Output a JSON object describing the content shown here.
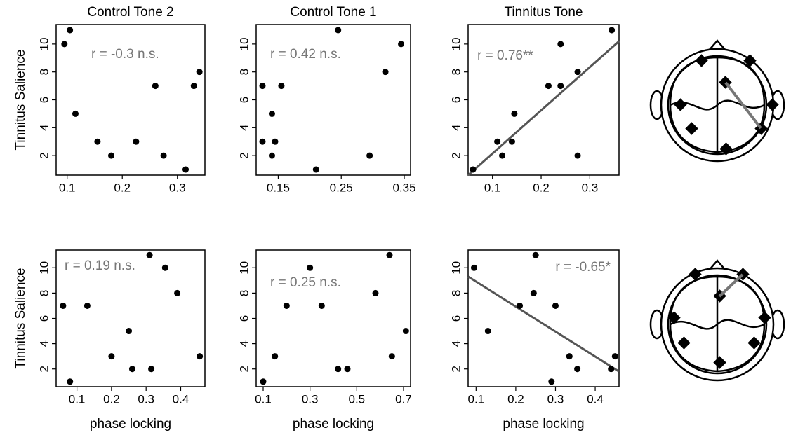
{
  "chart_data": [
    {
      "type": "scatter",
      "title": "Control Tone 2",
      "ylabel": "Tinnitus Salience",
      "annotation": "r = -0.3 n.s.",
      "x": [
        0.095,
        0.105,
        0.115,
        0.155,
        0.18,
        0.225,
        0.26,
        0.275,
        0.315,
        0.33,
        0.34
      ],
      "values": [
        10,
        11,
        5,
        3,
        2,
        3,
        7,
        2,
        1,
        7,
        8
      ],
      "xlim": [
        0.08,
        0.35
      ],
      "ylim": [
        0.6,
        11.4
      ],
      "xticks": [
        0.1,
        0.2,
        0.3
      ],
      "yticks": [
        2,
        4,
        6,
        8,
        10
      ],
      "color": "#000000"
    },
    {
      "type": "scatter",
      "title": "Control Tone 1",
      "annotation": "r = 0.42 n.s.",
      "x": [
        0.125,
        0.125,
        0.14,
        0.14,
        0.145,
        0.155,
        0.21,
        0.245,
        0.295,
        0.32,
        0.345
      ],
      "values": [
        7,
        3,
        5,
        2,
        3,
        7,
        1,
        11,
        2,
        8,
        10
      ],
      "xlim": [
        0.115,
        0.36
      ],
      "ylim": [
        0.6,
        11.4
      ],
      "xticks": [
        0.15,
        0.25,
        0.35
      ],
      "yticks": [
        2,
        4,
        6,
        8,
        10
      ],
      "color": "#000000"
    },
    {
      "type": "scatter",
      "title": "Tinnitus Tone",
      "annotation": "r = 0.76**",
      "x": [
        0.06,
        0.11,
        0.12,
        0.14,
        0.145,
        0.215,
        0.24,
        0.24,
        0.275,
        0.275,
        0.345
      ],
      "values": [
        1,
        3,
        2,
        3,
        5,
        7,
        7,
        10,
        8,
        2,
        11
      ],
      "fit_line": {
        "x": [
          0.05,
          0.36
        ],
        "y": [
          0.6,
          10.2
        ],
        "color": "#555555"
      },
      "xlim": [
        0.05,
        0.36
      ],
      "ylim": [
        0.6,
        11.4
      ],
      "xticks": [
        0.1,
        0.2,
        0.3
      ],
      "yticks": [
        2,
        4,
        6,
        8,
        10
      ],
      "color": "#000000"
    },
    {
      "type": "scatter",
      "xlabel": "phase locking",
      "ylabel": "Tinnitus Salience",
      "annotation": "r = 0.19 n.s.",
      "x": [
        0.06,
        0.08,
        0.13,
        0.2,
        0.25,
        0.26,
        0.31,
        0.315,
        0.355,
        0.39,
        0.455
      ],
      "values": [
        7,
        1,
        7,
        3,
        5,
        2,
        11,
        2,
        10,
        8,
        3
      ],
      "xlim": [
        0.04,
        0.47
      ],
      "ylim": [
        0.6,
        11.4
      ],
      "xticks": [
        0.1,
        0.2,
        0.3,
        0.4
      ],
      "yticks": [
        2,
        4,
        6,
        8,
        10
      ],
      "color": "#000000"
    },
    {
      "type": "scatter",
      "xlabel": "phase locking",
      "annotation": "r = 0.25 n.s.",
      "x": [
        0.1,
        0.15,
        0.2,
        0.3,
        0.35,
        0.42,
        0.46,
        0.58,
        0.64,
        0.65,
        0.71
      ],
      "values": [
        1,
        3,
        7,
        10,
        7,
        2,
        2,
        8,
        11,
        3,
        5
      ],
      "xlim": [
        0.07,
        0.73
      ],
      "ylim": [
        0.6,
        11.4
      ],
      "xticks": [
        0.1,
        0.3,
        0.5,
        0.7
      ],
      "yticks": [
        2,
        4,
        6,
        8,
        10
      ],
      "color": "#000000"
    },
    {
      "type": "scatter",
      "xlabel": "phase locking",
      "annotation": "r = -0.65*",
      "x": [
        0.095,
        0.13,
        0.21,
        0.245,
        0.25,
        0.29,
        0.3,
        0.335,
        0.355,
        0.44,
        0.45
      ],
      "values": [
        10,
        5,
        7,
        8,
        11,
        1,
        7,
        3,
        2,
        2,
        3
      ],
      "fit_line": {
        "x": [
          0.08,
          0.46
        ],
        "y": [
          9.3,
          1.8
        ],
        "color": "#555555"
      },
      "xlim": [
        0.08,
        0.46
      ],
      "ylim": [
        0.6,
        11.4
      ],
      "xticks": [
        0.1,
        0.2,
        0.3,
        0.4
      ],
      "yticks": [
        2,
        4,
        6,
        8,
        10
      ],
      "color": "#000000"
    }
  ]
}
